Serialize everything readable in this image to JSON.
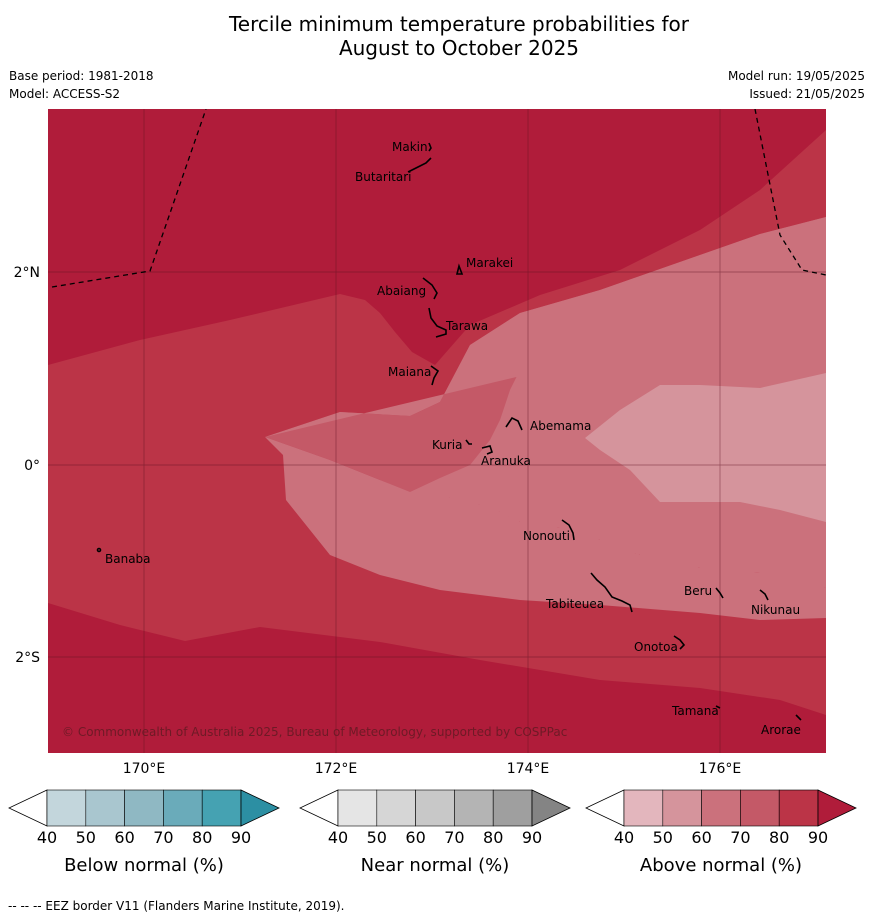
{
  "title_line1": "Tercile minimum temperature probabilities for",
  "title_line2": "August to October 2025",
  "meta": {
    "base_period": "Base period: 1981-2018",
    "model": "Model: ACCESS-S2",
    "model_run": "Model run: 19/05/2025",
    "issued": "Issued: 21/05/2025"
  },
  "map": {
    "lon_labels": [
      "170°E",
      "172°E",
      "174°E",
      "176°E"
    ],
    "lat_labels": [
      "2°N",
      "0°",
      "2°S"
    ],
    "copyright": "© Commonwealth of Australia 2025, Bureau of Meteorology, supported by COSPPac",
    "islands": [
      "Makin",
      "Butaritari",
      "Marakei",
      "Abaiang",
      "Tarawa",
      "Maiana",
      "Abemama",
      "Kuria",
      "Aranuka",
      "Nonouti",
      "Banaba",
      "Tabiteuea",
      "Beru",
      "Nikunau",
      "Onotoa",
      "Tamana",
      "Arorae"
    ]
  },
  "colorbars": [
    {
      "title": "Below normal (%)",
      "ticks": [
        "40",
        "50",
        "60",
        "70",
        "80",
        "90"
      ],
      "colors": [
        "#ffffff",
        "#c3d6dc",
        "#a9c6cf",
        "#8fb8c3",
        "#6aabba",
        "#45a2b2",
        "#2c8fa3"
      ]
    },
    {
      "title": "Near normal (%)",
      "ticks": [
        "40",
        "50",
        "60",
        "70",
        "80",
        "90"
      ],
      "colors": [
        "#ffffff",
        "#e5e5e5",
        "#d6d6d6",
        "#c8c8c8",
        "#b4b4b4",
        "#9f9f9f",
        "#848484"
      ]
    },
    {
      "title": "Above normal (%)",
      "ticks": [
        "40",
        "50",
        "60",
        "70",
        "80",
        "90"
      ],
      "colors": [
        "#ffffff",
        "#e3b6bd",
        "#d5949c",
        "#cb717c",
        "#c45967",
        "#bb3447",
        "#b01c3a"
      ]
    }
  ],
  "footer": "--  --  -- EEZ border V11 (Flanders Marine Institute, 2019)."
}
